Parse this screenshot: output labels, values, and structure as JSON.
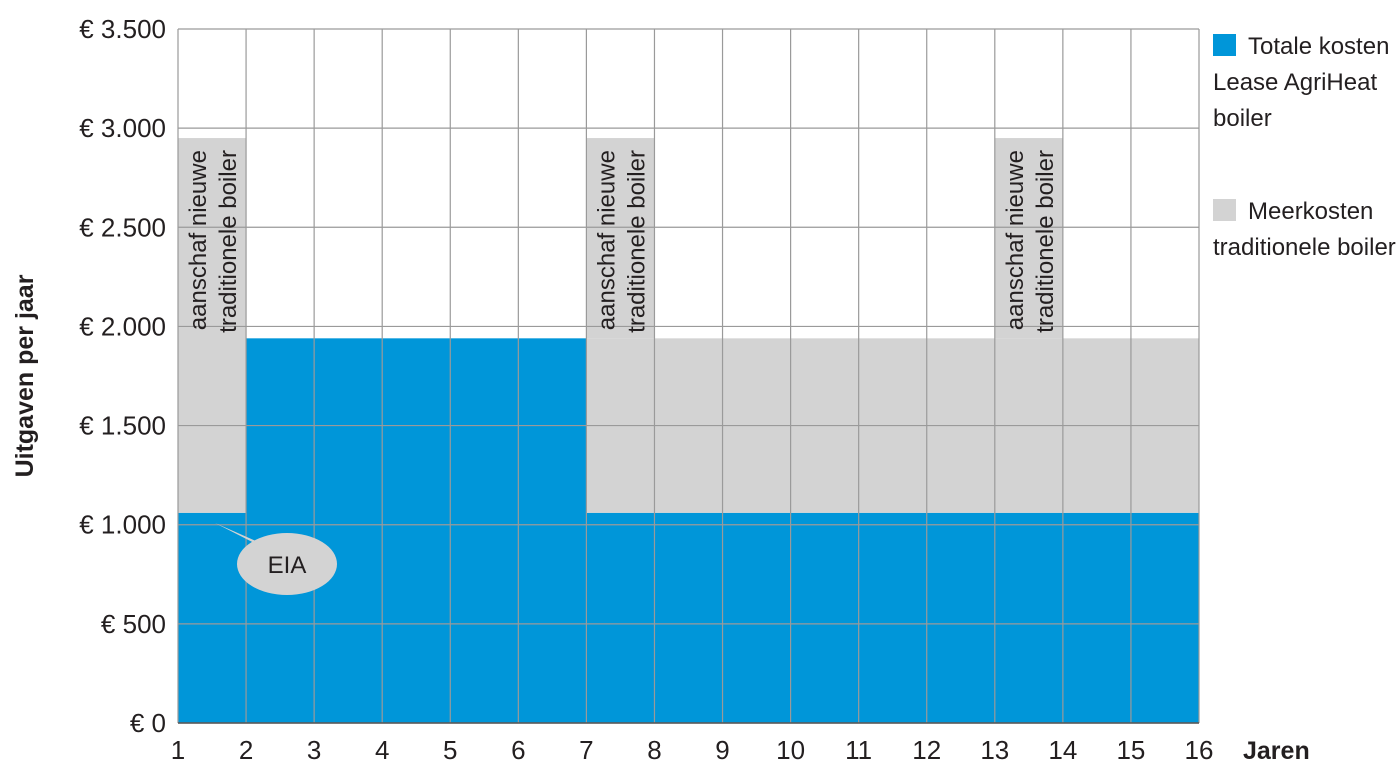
{
  "chart_data": {
    "type": "area",
    "ylabel": "Uitgaven per jaar",
    "xlabel": "Jaren",
    "x_ticks": [
      "1",
      "2",
      "3",
      "4",
      "5",
      "6",
      "7",
      "8",
      "9",
      "10",
      "11",
      "12",
      "13",
      "14",
      "15",
      "16"
    ],
    "y_ticks": [
      {
        "value": 0,
        "label": "€     0"
      },
      {
        "value": 500,
        "label": "€   500"
      },
      {
        "value": 1000,
        "label": "€ 1.000"
      },
      {
        "value": 1500,
        "label": "€ 1.500"
      },
      {
        "value": 2000,
        "label": "€ 2.000"
      },
      {
        "value": 2500,
        "label": "€ 2.500"
      },
      {
        "value": 3000,
        "label": "€ 3.000"
      },
      {
        "value": 3500,
        "label": "€ 3.500"
      }
    ],
    "xlim": [
      1,
      16
    ],
    "ylim": [
      0,
      3500
    ],
    "grid": true,
    "legend_position": "right",
    "series": [
      {
        "name": "Totale kosten Lease AgriHeat boiler",
        "legend_lines": [
          "Totale kosten",
          "Lease AgriHeat",
          "boiler"
        ],
        "color": "#0096d9",
        "segments": [
          {
            "x_from": 1,
            "x_to": 2,
            "value": 1060
          },
          {
            "x_from": 2,
            "x_to": 7,
            "value": 1940
          },
          {
            "x_from": 7,
            "x_to": 16,
            "value": 1060
          }
        ]
      },
      {
        "name": "Meerkosten traditionele boiler",
        "legend_lines": [
          "Meerkosten",
          "traditionele boiler"
        ],
        "color": "#d3d3d3",
        "segments": [
          {
            "x_from": 1,
            "x_to": 2,
            "from": 1060,
            "to": 2950
          },
          {
            "x_from": 7,
            "x_to": 16,
            "from": 1060,
            "to": 1940
          },
          {
            "x_from": 7,
            "x_to": 8,
            "from": 1940,
            "to": 2950
          },
          {
            "x_from": 13,
            "x_to": 14,
            "from": 1940,
            "to": 2950
          }
        ]
      }
    ],
    "annotations": [
      {
        "x_from": 1,
        "x_to": 2,
        "lines": [
          "aanschaf nieuwe",
          "traditionele boiler"
        ]
      },
      {
        "x_from": 7,
        "x_to": 8,
        "lines": [
          "aanschaf nieuwe",
          "traditionele boiler"
        ]
      },
      {
        "x_from": 13,
        "x_to": 14,
        "lines": [
          "aanschaf nieuwe",
          "traditionele boiler"
        ]
      }
    ],
    "callout": {
      "text": "EIA",
      "x": 1.1,
      "y": 1060
    }
  }
}
